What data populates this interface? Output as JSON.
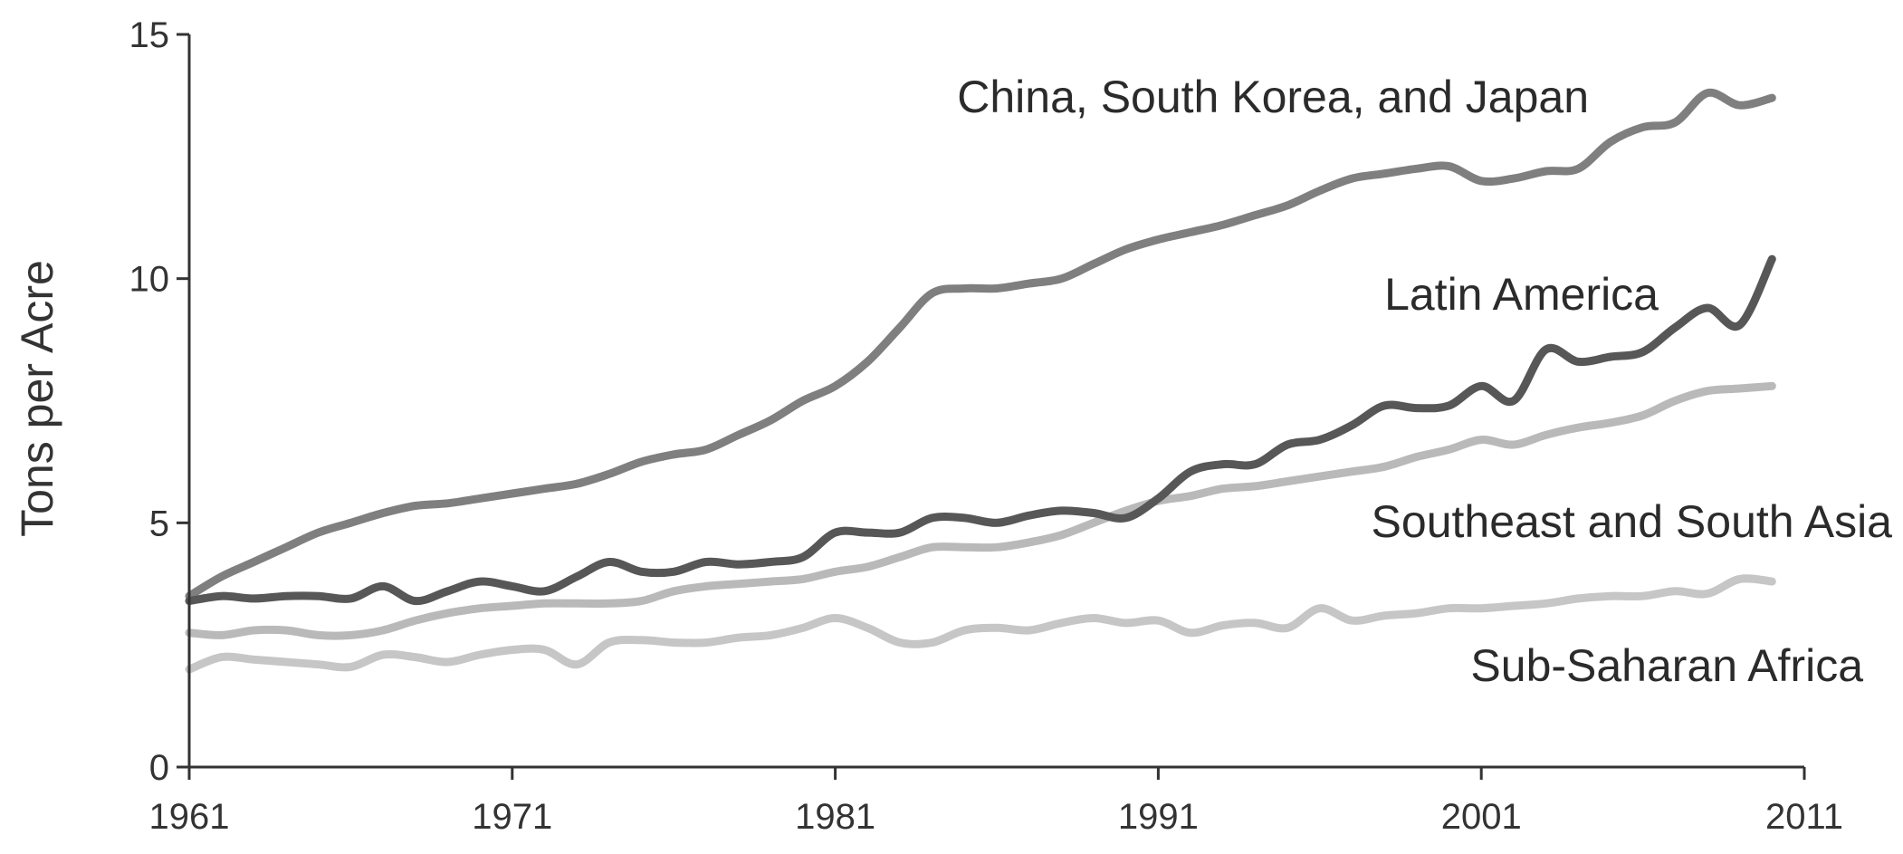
{
  "chart_data": {
    "type": "line",
    "title": "",
    "xlabel": "",
    "ylabel": "Tons per Acre",
    "xlim": [
      1961,
      2011
    ],
    "ylim": [
      0,
      15
    ],
    "xticks": [
      "1961",
      "1971",
      "1981",
      "1991",
      "2001",
      "2011"
    ],
    "yticks": [
      "0",
      "5",
      "10",
      "15"
    ],
    "grid": false,
    "legend": "inline labels",
    "x": [
      1961,
      1962,
      1963,
      1964,
      1965,
      1966,
      1967,
      1968,
      1969,
      1970,
      1971,
      1972,
      1973,
      1974,
      1975,
      1976,
      1977,
      1978,
      1979,
      1980,
      1981,
      1982,
      1983,
      1984,
      1985,
      1986,
      1987,
      1988,
      1989,
      1990,
      1991,
      1992,
      1993,
      1994,
      1995,
      1996,
      1997,
      1998,
      1999,
      2000,
      2001,
      2002,
      2003,
      2004,
      2005,
      2006,
      2007,
      2008,
      2009,
      2010
    ],
    "series": [
      {
        "name": "China, South Korea, and Japan",
        "color": "#7f7f7f",
        "values": [
          3.5,
          3.9,
          4.2,
          4.5,
          4.8,
          5.0,
          5.2,
          5.35,
          5.4,
          5.5,
          5.6,
          5.7,
          5.8,
          6.0,
          6.25,
          6.4,
          6.5,
          6.8,
          7.1,
          7.5,
          7.8,
          8.3,
          9.0,
          9.7,
          9.8,
          9.8,
          9.9,
          10.0,
          10.3,
          10.6,
          10.8,
          10.95,
          11.1,
          11.3,
          11.5,
          11.8,
          12.05,
          12.15,
          12.25,
          12.3,
          12.0,
          12.05,
          12.2,
          12.25,
          12.8,
          13.1,
          13.2,
          13.8,
          13.55,
          13.7
        ]
      },
      {
        "name": "Latin America",
        "color": "#575757",
        "values": [
          3.4,
          3.5,
          3.45,
          3.5,
          3.5,
          3.45,
          3.7,
          3.4,
          3.6,
          3.8,
          3.7,
          3.6,
          3.9,
          4.2,
          4.0,
          4.0,
          4.2,
          4.15,
          4.2,
          4.3,
          4.8,
          4.8,
          4.8,
          5.1,
          5.1,
          5.0,
          5.15,
          5.25,
          5.2,
          5.1,
          5.5,
          6.05,
          6.2,
          6.2,
          6.6,
          6.7,
          7.0,
          7.4,
          7.35,
          7.4,
          7.8,
          7.5,
          8.55,
          8.3,
          8.4,
          8.5,
          9.0,
          9.4,
          9.05,
          10.4
        ]
      },
      {
        "name": "Southeast and South Asia",
        "color": "#b9b9b9",
        "values": [
          2.75,
          2.7,
          2.8,
          2.8,
          2.7,
          2.7,
          2.8,
          3.0,
          3.15,
          3.25,
          3.3,
          3.35,
          3.35,
          3.35,
          3.4,
          3.6,
          3.7,
          3.75,
          3.8,
          3.85,
          4.0,
          4.1,
          4.3,
          4.5,
          4.5,
          4.5,
          4.6,
          4.75,
          5.0,
          5.25,
          5.45,
          5.55,
          5.7,
          5.75,
          5.85,
          5.95,
          6.05,
          6.15,
          6.35,
          6.5,
          6.7,
          6.6,
          6.8,
          6.95,
          7.05,
          7.2,
          7.5,
          7.7,
          7.75,
          7.8
        ]
      },
      {
        "name": "Sub-Saharan Africa",
        "color": "#c6c6c6",
        "values": [
          2.0,
          2.25,
          2.2,
          2.15,
          2.1,
          2.05,
          2.3,
          2.25,
          2.15,
          2.3,
          2.4,
          2.4,
          2.1,
          2.55,
          2.6,
          2.55,
          2.55,
          2.65,
          2.7,
          2.85,
          3.05,
          2.85,
          2.55,
          2.55,
          2.8,
          2.85,
          2.8,
          2.95,
          3.05,
          2.95,
          3.0,
          2.75,
          2.9,
          2.95,
          2.85,
          3.25,
          3.0,
          3.1,
          3.15,
          3.25,
          3.25,
          3.3,
          3.35,
          3.45,
          3.5,
          3.5,
          3.6,
          3.55,
          3.85,
          3.8
        ]
      }
    ]
  }
}
